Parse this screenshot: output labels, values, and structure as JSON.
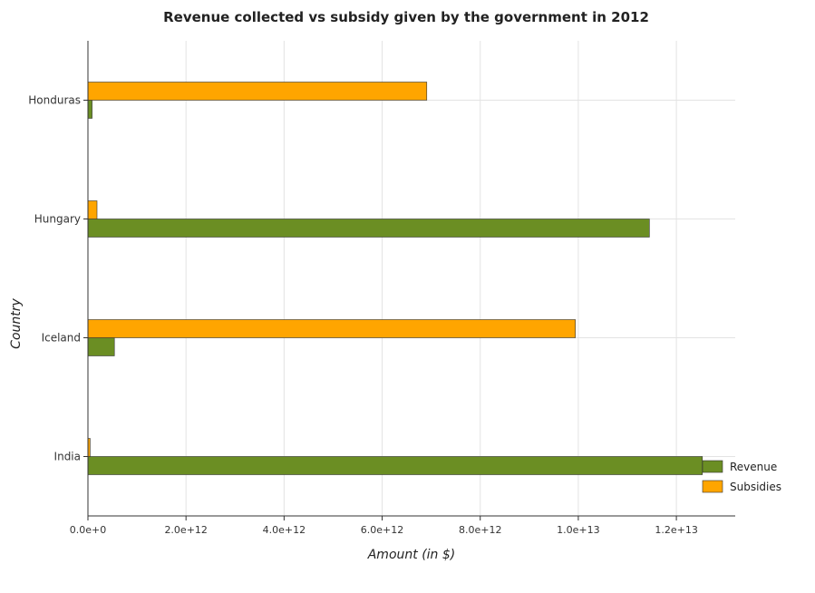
{
  "chart_data": {
    "type": "bar",
    "orientation": "horizontal",
    "title": "Revenue collected vs subsidy given by the government in 2012",
    "xlabel": "Amount (in $)",
    "ylabel": "Country",
    "categories": [
      "Honduras",
      "Hungary",
      "Iceland",
      "India"
    ],
    "series": [
      {
        "name": "Revenue",
        "color": "#6b8e23",
        "values": [
          85000000000.0,
          11450000000000.0,
          540000000000.0,
          12530000000000.0
        ]
      },
      {
        "name": "Subsidies",
        "color": "#ffa500",
        "values": [
          6910000000000.0,
          185000000000.0,
          9940000000000.0,
          45000000000.0
        ]
      }
    ],
    "xlim": [
      0,
      13200000000000
    ],
    "xticks": [
      0,
      2000000000000,
      4000000000000,
      6000000000000,
      8000000000000,
      10000000000000,
      12000000000000
    ],
    "xtick_labels": [
      "0.0e+0",
      "2.0e+12",
      "4.0e+12",
      "6.0e+12",
      "8.0e+12",
      "1.0e+13",
      "1.2e+13"
    ],
    "grid": true,
    "legend_position": "bottom-right"
  }
}
